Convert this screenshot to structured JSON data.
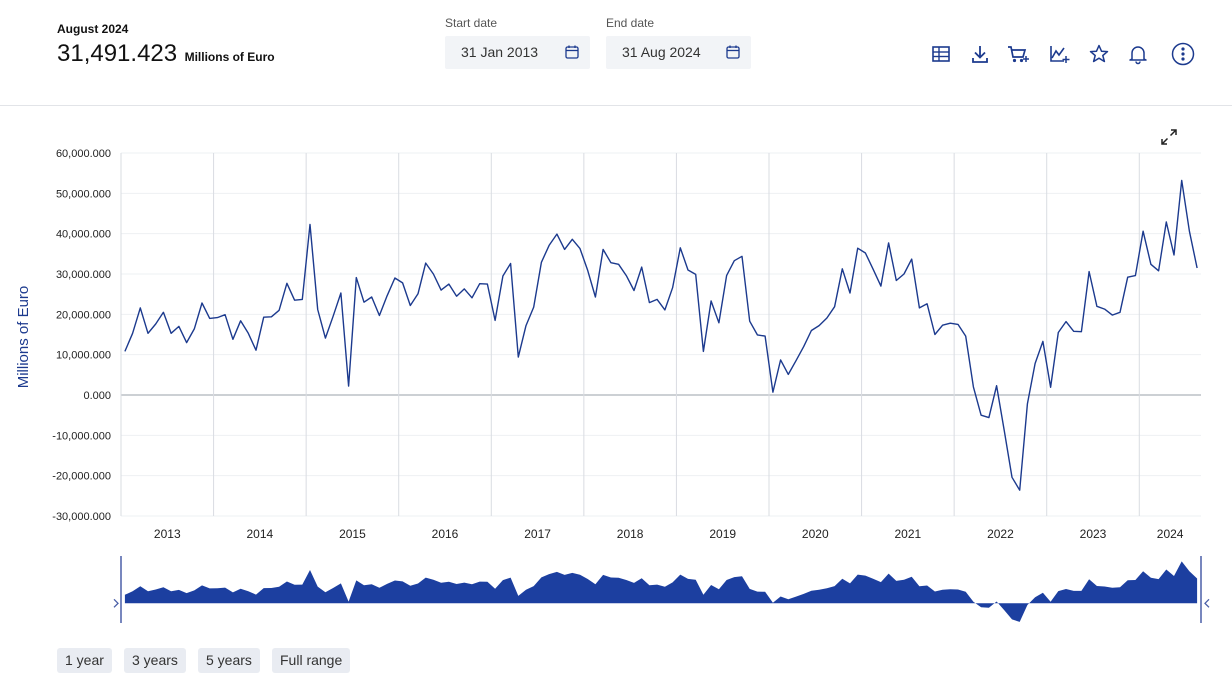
{
  "header": {
    "period": "August 2024",
    "latest_value": "31,491.423",
    "unit": "Millions of Euro"
  },
  "dates": {
    "start_label": "Start date",
    "start_value": "31 Jan 2013",
    "end_label": "End date",
    "end_value": "31 Aug 2024"
  },
  "toolbar": {
    "icons": [
      "table-icon",
      "download-icon",
      "cart-icon",
      "chart-add-icon",
      "star-icon",
      "bell-icon",
      "more-icon"
    ]
  },
  "range_buttons": [
    "1 year",
    "3 years",
    "5 years",
    "Full range"
  ],
  "colors": {
    "line": "#1c3a8e",
    "navigator_fill": "#1c3fa0",
    "axis_label": "#1c3a8e"
  },
  "chart_data": {
    "type": "line",
    "ylabel": "Millions of Euro",
    "ylim": [
      -30000,
      60000
    ],
    "y_ticks": [
      "60,000.000",
      "50,000.000",
      "40,000.000",
      "30,000.000",
      "20,000.000",
      "10,000.000",
      "0.000",
      "-10,000.000",
      "-20,000.000",
      "-30,000.000"
    ],
    "x_ticks": [
      "2013",
      "2014",
      "2015",
      "2016",
      "2017",
      "2018",
      "2019",
      "2020",
      "2021",
      "2022",
      "2023",
      "2024"
    ],
    "x_start": "2013-01",
    "x_end": "2024-08",
    "series": [
      {
        "values": [
          10800,
          15300,
          21600,
          15300,
          17600,
          20500,
          15300,
          17000,
          13000,
          16400,
          22800,
          19000,
          19200,
          19900,
          13800,
          18400,
          15300,
          11100,
          19300,
          19400,
          21000,
          27700,
          23500,
          23700,
          42300,
          21200,
          14100,
          19500,
          25300,
          2200,
          29100,
          23000,
          24300,
          19700,
          24600,
          29000,
          27800,
          22200,
          25100,
          32700,
          30000,
          26000,
          27500,
          24500,
          26300,
          24100,
          27600,
          27500,
          18500,
          29500,
          32600,
          9400,
          17200,
          21800,
          32900,
          37100,
          39900,
          36100,
          38600,
          36300,
          30900,
          24300,
          36100,
          32800,
          32400,
          29600,
          25900,
          31700,
          22900,
          23700,
          21100,
          26600,
          36500,
          31000,
          29900,
          10800,
          23300,
          17900,
          29600,
          33300,
          34400,
          18300,
          14900,
          14600,
          700,
          8700,
          5100,
          8500,
          12000,
          16000,
          17200,
          19100,
          21900,
          31300,
          25300,
          36400,
          35200,
          31200,
          27000,
          37700,
          28400,
          30000,
          33700,
          21600,
          22600,
          15000,
          17300,
          17800,
          17500,
          14600,
          2000,
          -5000,
          -5600,
          2300,
          -8900,
          -20400,
          -23600,
          -2200,
          7800,
          13300,
          1900,
          15500,
          18200,
          15800,
          15700,
          30600,
          22000,
          21300,
          19800,
          20500,
          29200,
          29600,
          40600,
          32400,
          30800,
          42900,
          34700,
          53200,
          40600,
          31491
        ]
      }
    ]
  }
}
